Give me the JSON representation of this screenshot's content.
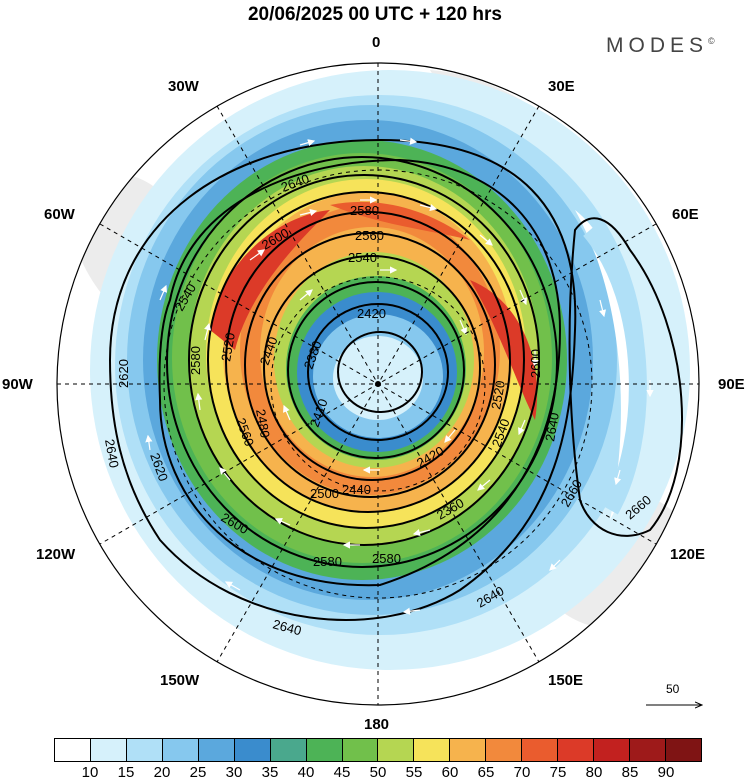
{
  "title": "20/06/2025  00 UTC  + 120 hrs",
  "brand": "MODES",
  "brand_mark": "©",
  "longitude_labels": {
    "lon_0": "0",
    "lon_30e": "30E",
    "lon_60e": "60E",
    "lon_90e": "90E",
    "lon_120e": "120E",
    "lon_150e": "150E",
    "lon_180": "180",
    "lon_150w": "150W",
    "lon_120w": "120W",
    "lon_90w": "90W",
    "lon_60w": "60W",
    "lon_30w": "30W"
  },
  "reference_vector": {
    "label": "50"
  },
  "colorbar": {
    "ticks": [
      "10",
      "15",
      "20",
      "25",
      "30",
      "35",
      "40",
      "45",
      "50",
      "55",
      "60",
      "65",
      "70",
      "75",
      "80",
      "85",
      "90"
    ],
    "colors": [
      "#ffffff",
      "#d6f1fb",
      "#b0e0f7",
      "#86c8ee",
      "#5ba8dd",
      "#3a8ccd",
      "#4aa88d",
      "#4db356",
      "#71c04b",
      "#b5d652",
      "#f6e35a",
      "#f6b34d",
      "#f2893c",
      "#ea5c2e",
      "#dc3a28",
      "#c2211f",
      "#9e1a1a",
      "#7f1414"
    ]
  },
  "contour_labels": {
    "l2640_a": "2640",
    "l2580_a": "2580",
    "l2560_a": "2560",
    "l2600_a": "2600",
    "l2540_a": "2540",
    "l2540_b": "2540",
    "l2420_a": "2420",
    "l2380_a": "2380",
    "l2440_a": "2440",
    "l2520_a": "2520",
    "l2580_b": "2580",
    "l2560_b": "2560",
    "l2480_a": "2480",
    "l2620_a": "2620",
    "l2620_b": "2620",
    "l2640_b": "2640",
    "l2600_b": "2600",
    "l2500_a": "2500",
    "l2440_b": "2440",
    "l2420_b": "2420",
    "l2360_a": "2360",
    "l2580_c": "2580",
    "l2580_d": "2580",
    "l2540_c": "2540",
    "l2520_b": "2520",
    "l2600_c": "2600",
    "l2640_c": "2640",
    "l2640_d": "2640",
    "l2640_e": "2640",
    "l2660_a": "2660",
    "l2660_b": "2660",
    "l2410_a": "2410"
  }
}
